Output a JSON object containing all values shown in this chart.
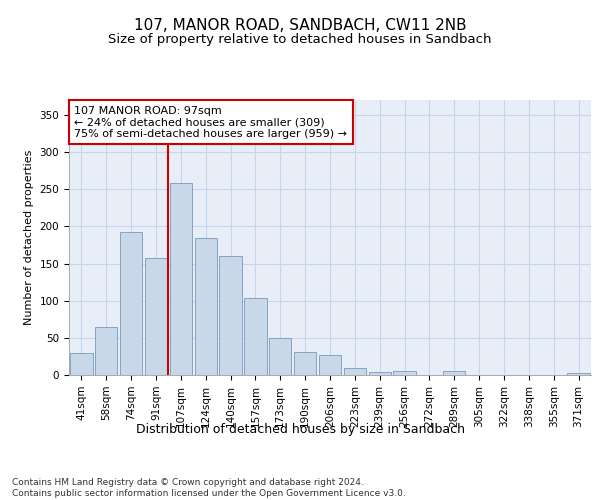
{
  "title1": "107, MANOR ROAD, SANDBACH, CW11 2NB",
  "title2": "Size of property relative to detached houses in Sandbach",
  "xlabel": "Distribution of detached houses by size in Sandbach",
  "ylabel": "Number of detached properties",
  "categories": [
    "41sqm",
    "58sqm",
    "74sqm",
    "91sqm",
    "107sqm",
    "124sqm",
    "140sqm",
    "157sqm",
    "173sqm",
    "190sqm",
    "206sqm",
    "223sqm",
    "239sqm",
    "256sqm",
    "272sqm",
    "289sqm",
    "305sqm",
    "322sqm",
    "338sqm",
    "355sqm",
    "371sqm"
  ],
  "values": [
    30,
    65,
    193,
    158,
    258,
    184,
    160,
    103,
    50,
    31,
    27,
    10,
    4,
    5,
    0,
    5,
    0,
    0,
    0,
    0,
    3
  ],
  "bar_color": "#c8d8e8",
  "bar_edge_color": "#7799bb",
  "vline_x_index": 3.5,
  "vline_color": "#cc0000",
  "annotation_text": "107 MANOR ROAD: 97sqm\n← 24% of detached houses are smaller (309)\n75% of semi-detached houses are larger (959) →",
  "annotation_box_color": "#ffffff",
  "annotation_box_edge_color": "#cc0000",
  "ylim": [
    0,
    370
  ],
  "yticks": [
    0,
    50,
    100,
    150,
    200,
    250,
    300,
    350
  ],
  "grid_color": "#c8d4e8",
  "bg_color": "#e8eef8",
  "footer_text": "Contains HM Land Registry data © Crown copyright and database right 2024.\nContains public sector information licensed under the Open Government Licence v3.0.",
  "title1_fontsize": 11,
  "title2_fontsize": 9.5,
  "xlabel_fontsize": 9,
  "ylabel_fontsize": 8,
  "tick_fontsize": 7.5,
  "annotation_fontsize": 8,
  "footer_fontsize": 6.5
}
